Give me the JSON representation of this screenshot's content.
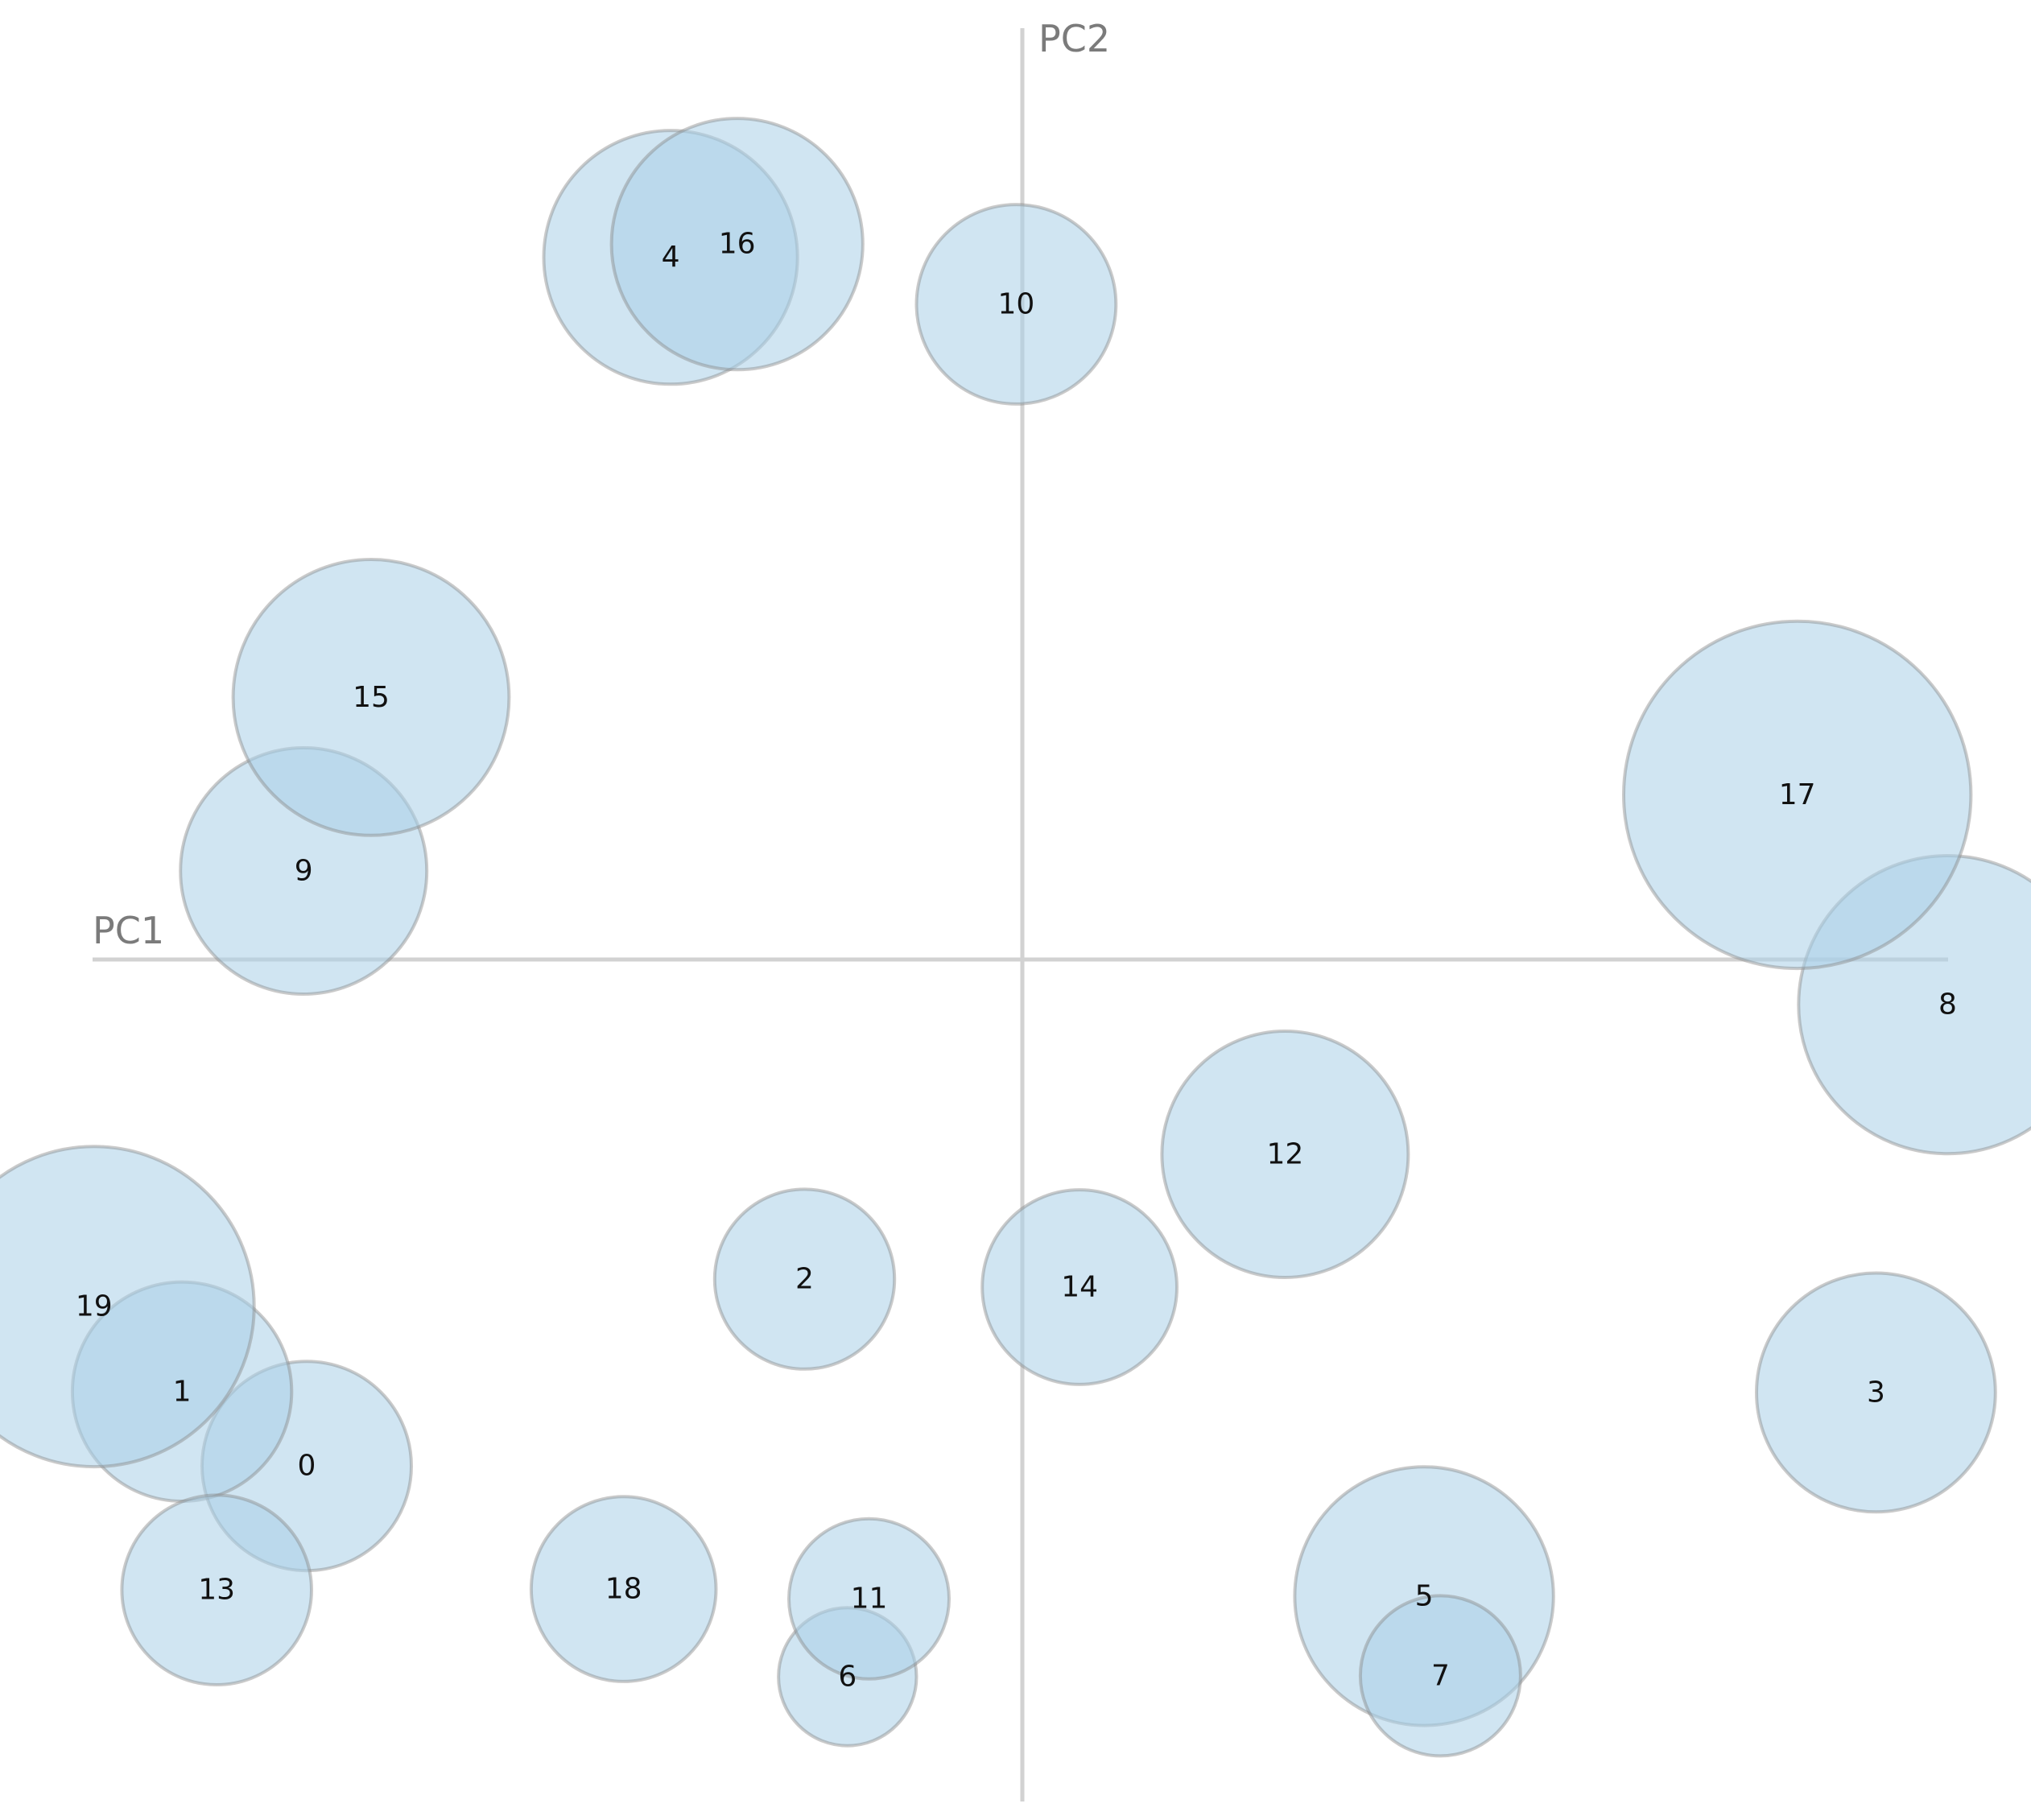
{
  "chart_data": {
    "type": "scatter",
    "xlabel": "PC1",
    "ylabel": "PC2",
    "xlim": [
      -1,
      1
    ],
    "ylim": [
      -1,
      1
    ],
    "grid": false,
    "points": [
      {
        "label": "0",
        "x": -0.7,
        "y": -0.572,
        "size": 0.85
      },
      {
        "label": "1",
        "x": -0.822,
        "y": -0.488,
        "size": 0.89
      },
      {
        "label": "2",
        "x": -0.213,
        "y": -0.361,
        "size": 0.73
      },
      {
        "label": "3",
        "x": 0.835,
        "y": -0.489,
        "size": 0.97
      },
      {
        "label": "4",
        "x": -0.344,
        "y": 0.793,
        "size": 1.03
      },
      {
        "label": "5",
        "x": 0.393,
        "y": -0.719,
        "size": 1.05
      },
      {
        "label": "6",
        "x": -0.171,
        "y": -0.81,
        "size": 0.56
      },
      {
        "label": "7",
        "x": 0.409,
        "y": -0.809,
        "size": 0.65
      },
      {
        "label": "8",
        "x": 0.905,
        "y": -0.051,
        "size": 1.21
      },
      {
        "label": "9",
        "x": -0.703,
        "y": 0.1,
        "size": 1.0
      },
      {
        "label": "10",
        "x": -0.006,
        "y": 0.74,
        "size": 0.81
      },
      {
        "label": "11",
        "x": -0.15,
        "y": -0.722,
        "size": 0.65
      },
      {
        "label": "12",
        "x": 0.257,
        "y": -0.22,
        "size": 1.0
      },
      {
        "label": "13",
        "x": -0.788,
        "y": -0.712,
        "size": 0.77
      },
      {
        "label": "14",
        "x": 0.056,
        "y": -0.37,
        "size": 0.79
      },
      {
        "label": "15",
        "x": -0.637,
        "y": 0.296,
        "size": 1.12
      },
      {
        "label": "16",
        "x": -0.279,
        "y": 0.808,
        "size": 1.02
      },
      {
        "label": "17",
        "x": 0.758,
        "y": 0.186,
        "size": 1.41
      },
      {
        "label": "18",
        "x": -0.39,
        "y": -0.711,
        "size": 0.75
      },
      {
        "label": "19",
        "x": -0.908,
        "y": -0.392,
        "size": 1.3
      }
    ]
  }
}
